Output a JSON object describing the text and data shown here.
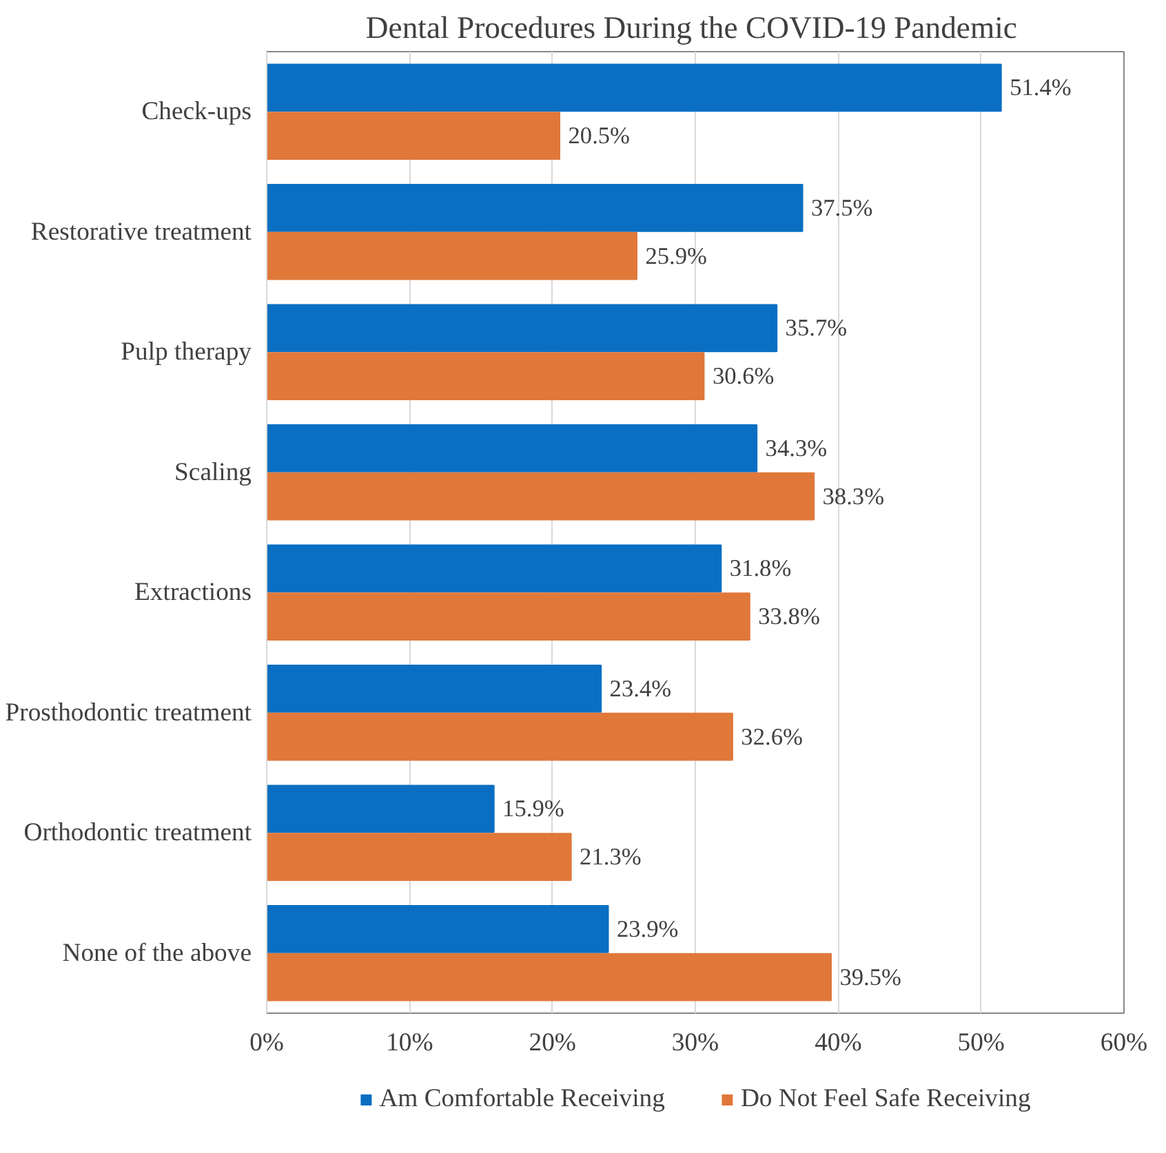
{
  "chart_data": {
    "type": "bar",
    "orientation": "horizontal",
    "title": "Dental Procedures During the  COVID-19 Pandemic",
    "categories": [
      "Check-ups",
      "Restorative treatment",
      "Pulp therapy",
      "Scaling",
      "Extractions",
      "Prosthodontic treatment",
      "Orthodontic treatment",
      "None of the above"
    ],
    "series": [
      {
        "name": "Am Comfortable Receiving",
        "color": "#0a6fc2",
        "values": [
          51.4,
          37.5,
          35.7,
          34.3,
          31.8,
          23.4,
          15.9,
          23.9
        ],
        "value_labels": [
          "51.4%",
          "37.5%",
          "35.7%",
          "34.3%",
          "31.8%",
          "23.4%",
          "15.9%",
          "23.9%"
        ]
      },
      {
        "name": "Do Not Feel Safe Receiving",
        "color": "#e0783a",
        "values": [
          20.5,
          25.9,
          30.6,
          38.3,
          33.8,
          32.6,
          21.3,
          39.5
        ],
        "value_labels": [
          "20.5%",
          "25.9%",
          "30.6%",
          "38.3%",
          "33.8%",
          "32.6%",
          "21.3%",
          "39.5%"
        ]
      }
    ],
    "xlim": [
      0,
      60
    ],
    "xticks": [
      {
        "value": 0,
        "label": "0%"
      },
      {
        "value": 10,
        "label": "10%"
      },
      {
        "value": 20,
        "label": "20%"
      },
      {
        "value": 30,
        "label": "30%"
      },
      {
        "value": 40,
        "label": "40%"
      },
      {
        "value": 50,
        "label": "50%"
      },
      {
        "value": 60,
        "label": "60%"
      }
    ],
    "grid": "x",
    "legend": "bottom"
  }
}
